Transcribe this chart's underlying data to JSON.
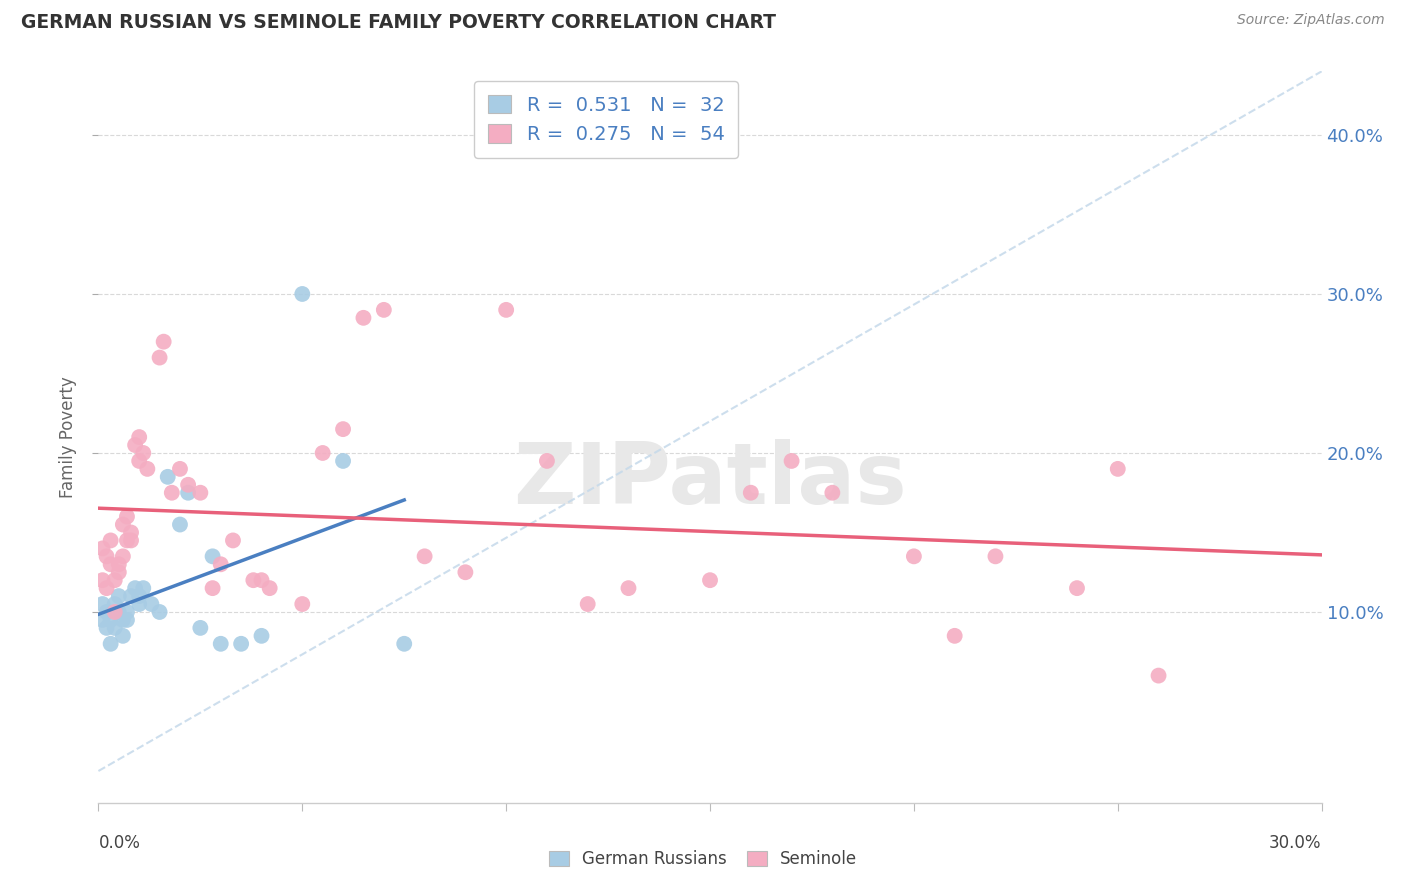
{
  "title": "GERMAN RUSSIAN VS SEMINOLE FAMILY POVERTY CORRELATION CHART",
  "source": "Source: ZipAtlas.com",
  "ylabel": "Family Poverty",
  "xlim": [
    0.0,
    0.3
  ],
  "ylim": [
    -0.02,
    0.44
  ],
  "german_russian_x": [
    0.001,
    0.001,
    0.002,
    0.002,
    0.003,
    0.003,
    0.004,
    0.004,
    0.005,
    0.005,
    0.006,
    0.006,
    0.007,
    0.007,
    0.008,
    0.009,
    0.01,
    0.01,
    0.011,
    0.013,
    0.015,
    0.017,
    0.02,
    0.022,
    0.025,
    0.028,
    0.03,
    0.035,
    0.04,
    0.05,
    0.06,
    0.075
  ],
  "german_russian_y": [
    0.095,
    0.105,
    0.09,
    0.1,
    0.08,
    0.095,
    0.105,
    0.09,
    0.1,
    0.11,
    0.095,
    0.085,
    0.095,
    0.1,
    0.11,
    0.115,
    0.105,
    0.11,
    0.115,
    0.105,
    0.1,
    0.185,
    0.155,
    0.175,
    0.09,
    0.135,
    0.08,
    0.08,
    0.085,
    0.3,
    0.195,
    0.08
  ],
  "seminole_x": [
    0.001,
    0.001,
    0.002,
    0.002,
    0.003,
    0.003,
    0.004,
    0.004,
    0.005,
    0.005,
    0.006,
    0.006,
    0.007,
    0.007,
    0.008,
    0.008,
    0.009,
    0.01,
    0.01,
    0.011,
    0.012,
    0.015,
    0.016,
    0.018,
    0.02,
    0.022,
    0.025,
    0.028,
    0.03,
    0.033,
    0.038,
    0.04,
    0.042,
    0.05,
    0.055,
    0.06,
    0.065,
    0.07,
    0.08,
    0.09,
    0.1,
    0.11,
    0.12,
    0.13,
    0.15,
    0.16,
    0.17,
    0.18,
    0.2,
    0.21,
    0.22,
    0.24,
    0.25,
    0.26
  ],
  "seminole_y": [
    0.12,
    0.14,
    0.115,
    0.135,
    0.145,
    0.13,
    0.12,
    0.1,
    0.13,
    0.125,
    0.135,
    0.155,
    0.145,
    0.16,
    0.15,
    0.145,
    0.205,
    0.195,
    0.21,
    0.2,
    0.19,
    0.26,
    0.27,
    0.175,
    0.19,
    0.18,
    0.175,
    0.115,
    0.13,
    0.145,
    0.12,
    0.12,
    0.115,
    0.105,
    0.2,
    0.215,
    0.285,
    0.29,
    0.135,
    0.125,
    0.29,
    0.195,
    0.105,
    0.115,
    0.12,
    0.175,
    0.195,
    0.175,
    0.135,
    0.085,
    0.135,
    0.115,
    0.19,
    0.06
  ],
  "blue_scatter_color": "#a8cce4",
  "pink_scatter_color": "#f4adc2",
  "blue_line_color": "#4a7fc1",
  "pink_line_color": "#e8607a",
  "dashed_line_color": "#c5d9ea",
  "background_color": "#ffffff",
  "grid_color": "#d0d0d0",
  "right_tick_color": "#4a7fc1",
  "R1": "0.531",
  "N1": "32",
  "R2": "0.275",
  "N2": "54"
}
